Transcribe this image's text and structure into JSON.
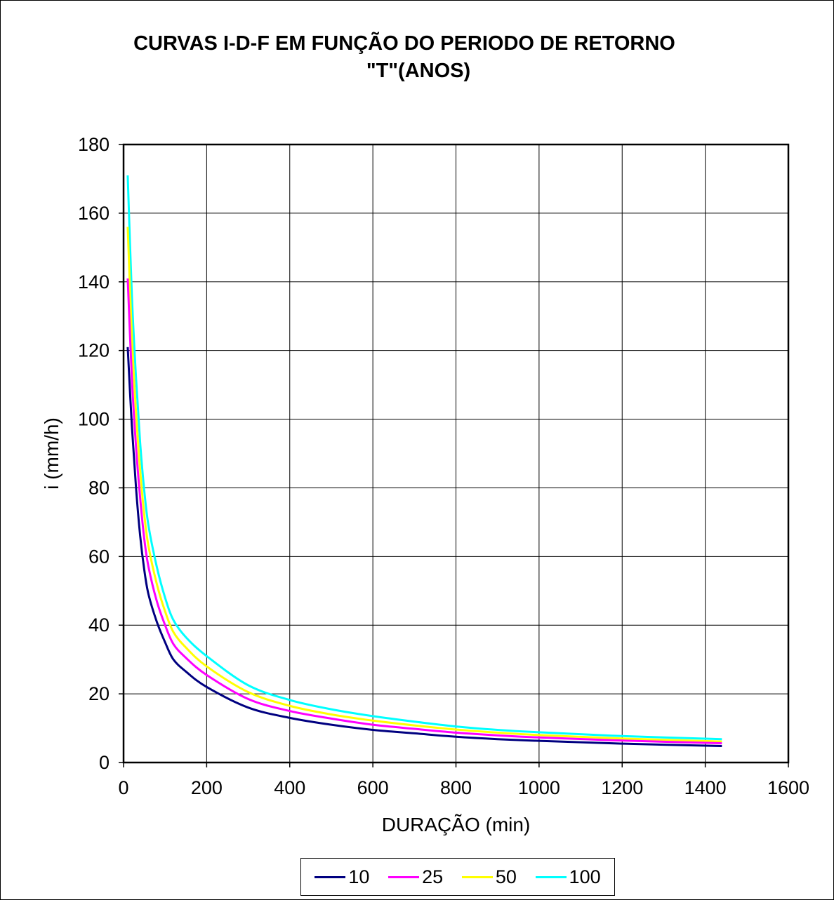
{
  "chart_data": {
    "type": "line",
    "title_line1": "CURVAS I-D-F EM FUNÇÃO DO PERIODO DE RETORNO",
    "title_line2": "\"T\"(ANOS)",
    "xlabel": "DURAÇÃO (min)",
    "ylabel": "i (mm/h)",
    "xlim": [
      0,
      1600
    ],
    "ylim": [
      0,
      180
    ],
    "xticks": [
      0,
      200,
      400,
      600,
      800,
      1000,
      1200,
      1400,
      1600
    ],
    "yticks": [
      0,
      20,
      40,
      60,
      80,
      100,
      120,
      140,
      160,
      180
    ],
    "grid": true,
    "legend_position": "bottom",
    "x": [
      10,
      20,
      30,
      40,
      50,
      60,
      80,
      100,
      120,
      150,
      200,
      300,
      400,
      500,
      600,
      700,
      800,
      900,
      1000,
      1200,
      1440
    ],
    "series": [
      {
        "name": "10",
        "color": "#000080",
        "values": [
          121,
          98,
          80,
          66,
          56,
          49,
          41,
          35,
          30,
          26.5,
          22,
          16,
          13,
          11,
          9.5,
          8.5,
          7.5,
          6.8,
          6.3,
          5.5,
          4.8
        ]
      },
      {
        "name": "25",
        "color": "#ff00ff",
        "values": [
          141,
          112,
          92,
          77,
          65,
          57,
          47,
          40,
          34.5,
          30.5,
          25.5,
          18.5,
          15,
          12.8,
          11,
          9.8,
          8.7,
          7.9,
          7.3,
          6.4,
          5.6
        ]
      },
      {
        "name": "50",
        "color": "#ffff00",
        "values": [
          156,
          124,
          102,
          85,
          72,
          63,
          52,
          44,
          38,
          33.5,
          28,
          20.5,
          16.5,
          14,
          12.2,
          10.8,
          9.6,
          8.7,
          8,
          7,
          6.1
        ]
      },
      {
        "name": "100",
        "color": "#00ffff",
        "values": [
          171,
          136,
          112,
          93,
          79,
          69,
          57,
          48,
          41.5,
          36.5,
          31,
          22.5,
          18.2,
          15.5,
          13.5,
          11.9,
          10.5,
          9.5,
          8.8,
          7.7,
          6.8
        ]
      }
    ]
  }
}
